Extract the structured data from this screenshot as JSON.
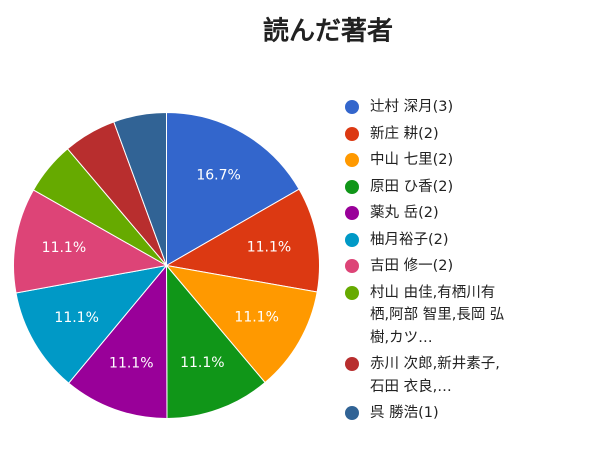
{
  "chart_data": {
    "type": "pie",
    "title": "読んだ著者",
    "categories": [
      "辻村 深月(3)",
      "新庄 耕(2)",
      "中山 七里(2)",
      "原田 ひ香(2)",
      "薬丸 岳(2)",
      "柚月裕子(2)",
      "吉田 修一(2)",
      "村山 由佳,有栖川有栖,阿部 智里,長岡 弘樹,カツ…",
      "赤川 次郎,新井素子,石田 衣良,…",
      "呉 勝浩(1)"
    ],
    "values": [
      16.7,
      11.1,
      11.1,
      11.1,
      11.1,
      11.1,
      11.1,
      5.6,
      5.6,
      5.6
    ],
    "value_labels": [
      "16.7%",
      "11.1%",
      "11.1%",
      "11.1%",
      "11.1%",
      "11.1%",
      "11.1%",
      null,
      null,
      null
    ],
    "colors": [
      "#3366cc",
      "#dc3912",
      "#ff9900",
      "#109618",
      "#990099",
      "#0099c6",
      "#dd4477",
      "#66aa00",
      "#b82e2e",
      "#316395"
    ],
    "legend": "right"
  }
}
